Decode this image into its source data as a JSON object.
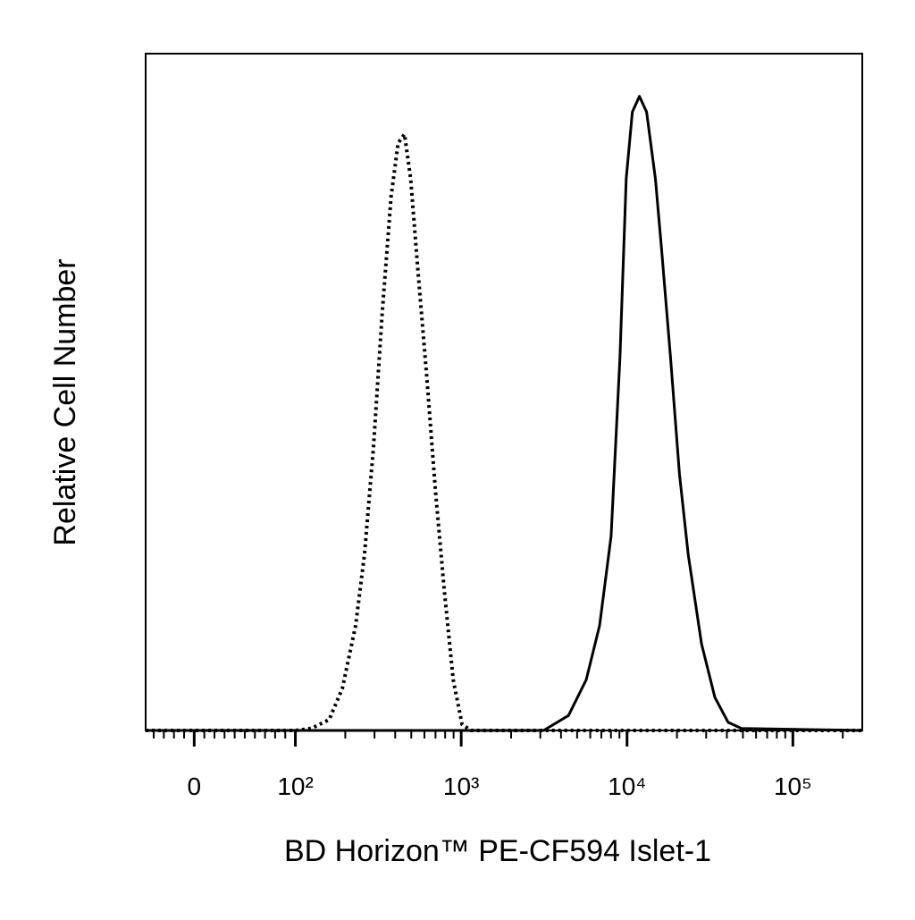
{
  "chart_data": {
    "type": "line",
    "xlabel": "BD Horizon™ PE-CF594  Islet-1",
    "ylabel": "Relative Cell Number",
    "xscale": "biexponential",
    "linthresh": 100,
    "linscale": 0.61,
    "xlim": [
      -48,
      262144
    ],
    "ylim": [
      0,
      100
    ],
    "xticks": [
      0,
      {
        "value": 100,
        "label": "10²"
      },
      {
        "value": 1000,
        "label": "10³"
      },
      {
        "value": 10000,
        "label": "10⁴"
      },
      {
        "value": 100000,
        "label": "10⁵"
      }
    ],
    "xminor": true,
    "series": [
      {
        "color": "#000000",
        "style": "dotted",
        "x": [
          -48,
          100,
          125,
          160,
          192,
          231,
          261,
          296,
          334,
          378,
          417,
          455,
          496,
          547,
          619,
          700,
          791,
          895,
          1012,
          1145,
          262144
        ],
        "values": [
          0,
          0,
          0.3,
          1.6,
          6.2,
          15.5,
          26.0,
          41.9,
          61.8,
          78.9,
          86.8,
          88.1,
          81.5,
          68.3,
          52.4,
          35.3,
          20.7,
          7.5,
          0.9,
          0,
          0
        ]
      },
      {
        "color": "#000000",
        "style": "solid",
        "x": [
          -48,
          3143,
          4436,
          5675,
          6826,
          8012,
          9064,
          9880,
          10770,
          11880,
          13120,
          14830,
          16180,
          18280,
          20700,
          23380,
          28120,
          33830,
          40700,
          48950,
          262144
        ],
        "values": [
          0,
          0,
          2.2,
          7.5,
          15.5,
          28.7,
          55.1,
          81.5,
          91.4,
          93.7,
          91.4,
          81.5,
          70.9,
          55.1,
          37.9,
          26.0,
          12.8,
          4.9,
          1.2,
          0.3,
          0
        ]
      }
    ]
  }
}
